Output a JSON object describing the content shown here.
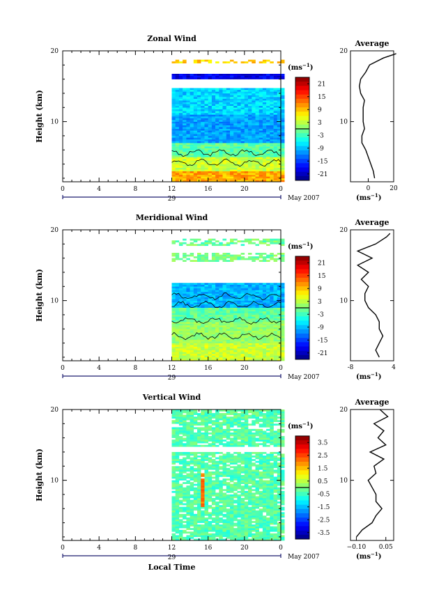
{
  "chart_data": [
    {
      "type": "heatmap",
      "title": "Zonal Wind",
      "ylabel": "Height (km)",
      "xlabel": "",
      "x_ticks": [
        "0",
        "4",
        "8",
        "12",
        "16",
        "20",
        "0"
      ],
      "y_ticks": [
        "20",
        "10"
      ],
      "date_day": "29",
      "date_month": "May 2007",
      "colorbar_unit": "(ms",
      "colorbar_unit_sup": "−1",
      "colorbar_ticks": [
        "21",
        "15",
        "9",
        "3",
        "-3",
        "-9",
        "-15",
        "-21"
      ],
      "value_range": [
        -24,
        24
      ],
      "data_hours": [
        12,
        24
      ],
      "profile": {
        "title": "Average",
        "unit": "(ms",
        "unit_sup": "−1",
        "x_ticks": [
          "0",
          "20"
        ],
        "y_ticks": [
          "20",
          "10"
        ],
        "xlim": [
          -14,
          20
        ],
        "height_km": [
          2,
          3,
          4,
          5,
          6,
          7,
          8,
          9,
          10,
          11,
          12,
          13,
          14,
          15,
          16,
          17,
          18,
          19,
          19.6
        ],
        "values": [
          5,
          4,
          2,
          0,
          -2,
          -5,
          -5,
          -3,
          -4,
          -4,
          -4,
          -3,
          -6,
          -7,
          -6,
          -2,
          1,
          12,
          22
        ]
      }
    },
    {
      "type": "heatmap",
      "title": "Meridional Wind",
      "ylabel": "Height (km)",
      "xlabel": "",
      "x_ticks": [
        "0",
        "4",
        "8",
        "12",
        "16",
        "20",
        "0"
      ],
      "y_ticks": [
        "20",
        "10"
      ],
      "date_day": "29",
      "date_month": "May 2007",
      "colorbar_unit": "(ms",
      "colorbar_unit_sup": "−1",
      "colorbar_ticks": [
        "21",
        "15",
        "9",
        "3",
        "-3",
        "-9",
        "-15",
        "-21"
      ],
      "value_range": [
        -24,
        24
      ],
      "data_hours": [
        12,
        24
      ],
      "profile": {
        "title": "Average",
        "unit": "(ms",
        "unit_sup": "−1",
        "x_ticks": [
          "-8",
          "4"
        ],
        "y_ticks": [
          "20",
          "10"
        ],
        "xlim": [
          -8,
          4
        ],
        "height_km": [
          2,
          3,
          4,
          5,
          6,
          7,
          8,
          9,
          10,
          11,
          12,
          13,
          14,
          15,
          16,
          17,
          18,
          19,
          19.5
        ],
        "values": [
          0,
          -1,
          0,
          1,
          0,
          0,
          -1,
          -3,
          -4,
          -4,
          -3,
          -5,
          -3,
          -6,
          -2,
          -6,
          -1,
          2,
          3
        ]
      }
    },
    {
      "type": "heatmap",
      "title": "Vertical Wind",
      "ylabel": "Height (km)",
      "xlabel": "Local Time",
      "x_ticks": [
        "0",
        "4",
        "8",
        "12",
        "16",
        "20",
        "0"
      ],
      "y_ticks": [
        "20",
        "10"
      ],
      "date_day": "29",
      "date_month": "May 2007",
      "colorbar_unit": "(ms",
      "colorbar_unit_sup": "−1",
      "colorbar_ticks": [
        "3.5",
        "2.5",
        "1.5",
        "0.5",
        "-0.5",
        "-1.5",
        "-2.5",
        "-3.5"
      ],
      "value_range": [
        -4,
        4
      ],
      "data_hours": [
        12,
        24
      ],
      "profile": {
        "title": "Average",
        "unit": "(ms",
        "unit_sup": "−1",
        "x_ticks": [
          "−0.10",
          "0.05"
        ],
        "y_ticks": [
          "20",
          "10"
        ],
        "xlim": [
          -0.13,
          0.09
        ],
        "height_km": [
          2,
          3,
          4,
          5,
          6,
          7,
          8,
          9,
          10,
          11,
          12,
          13,
          14,
          15,
          16,
          17,
          18,
          19,
          20
        ],
        "values": [
          -0.1,
          -0.07,
          -0.02,
          0.0,
          0.03,
          0.0,
          0.0,
          -0.02,
          -0.04,
          0.0,
          -0.01,
          0.04,
          -0.03,
          0.05,
          0.01,
          0.04,
          -0.01,
          0.06,
          0.02
        ]
      }
    }
  ]
}
